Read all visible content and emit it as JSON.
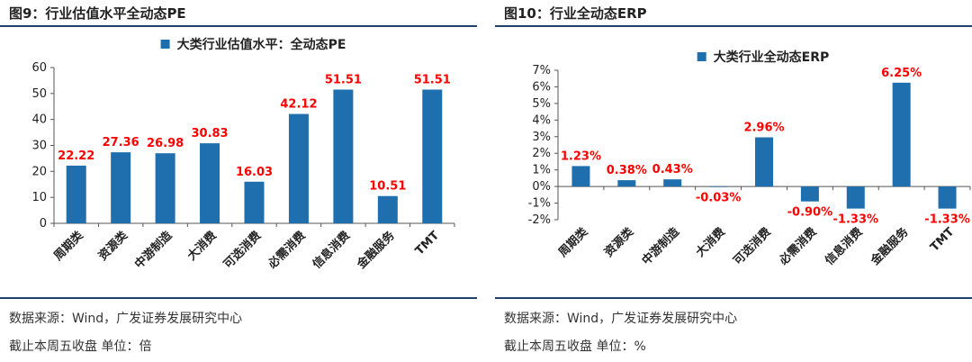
{
  "left": {
    "title": "图9：行业估值水平全动态PE",
    "source": "数据来源：Wind，广发证券发展研究中心",
    "note": "截止本周五收盘 单位：倍"
  },
  "right": {
    "title": "图10：行业全动态ERP",
    "source": "数据来源：Wind，广发证券发展研究中心",
    "note": "截止本周五收盘 单位：%"
  },
  "chart_data": [
    {
      "type": "bar",
      "legend": "大类行业估值水平：全动态PE",
      "legend_position": "top-center",
      "categories": [
        "周期类",
        "资源类",
        "中游制造",
        "大消费",
        "可选消费",
        "必需消费",
        "信息消费",
        "金融服务",
        "TMT"
      ],
      "series": [
        {
          "values": [
            22.22,
            27.36,
            26.98,
            30.83,
            16.03,
            42.12,
            51.51,
            10.51,
            51.51
          ],
          "labels": [
            "22.22",
            "27.36",
            "26.98",
            "30.83",
            "16.03",
            "42.12",
            "51.51",
            "10.51",
            "51.51"
          ]
        }
      ],
      "ylim": [
        0,
        60
      ],
      "yticks": [
        0,
        10,
        20,
        30,
        40,
        50,
        60
      ],
      "ytick_labels": [
        "0",
        "10",
        "20",
        "30",
        "40",
        "50",
        "60"
      ],
      "grid": false,
      "bar_color": "#1f6fae",
      "label_color": "#ff0000"
    },
    {
      "type": "bar",
      "legend": "大类行业全动态ERP",
      "legend_position": "top-center",
      "categories": [
        "周期类",
        "资源类",
        "中游制造",
        "大消费",
        "可选消费",
        "必需消费",
        "信息消费",
        "金融服务",
        "TMT"
      ],
      "series": [
        {
          "values": [
            1.23,
            0.38,
            0.43,
            -0.03,
            2.96,
            -0.9,
            -1.33,
            6.25,
            -1.33
          ],
          "labels": [
            "1.23%",
            "0.38%",
            "0.43%",
            "-0.03%",
            "2.96%",
            "-0.90%",
            "-1.33%",
            "6.25%",
            "-1.33%"
          ]
        }
      ],
      "ylim": [
        -2,
        7
      ],
      "yticks": [
        -2,
        -1,
        0,
        1,
        2,
        3,
        4,
        5,
        6,
        7
      ],
      "ytick_labels": [
        "-2%",
        "-1%",
        "0%",
        "1%",
        "2%",
        "3%",
        "4%",
        "5%",
        "6%",
        "7%"
      ],
      "grid": false,
      "bar_color": "#1f6fae",
      "label_color": "#ff0000"
    }
  ]
}
